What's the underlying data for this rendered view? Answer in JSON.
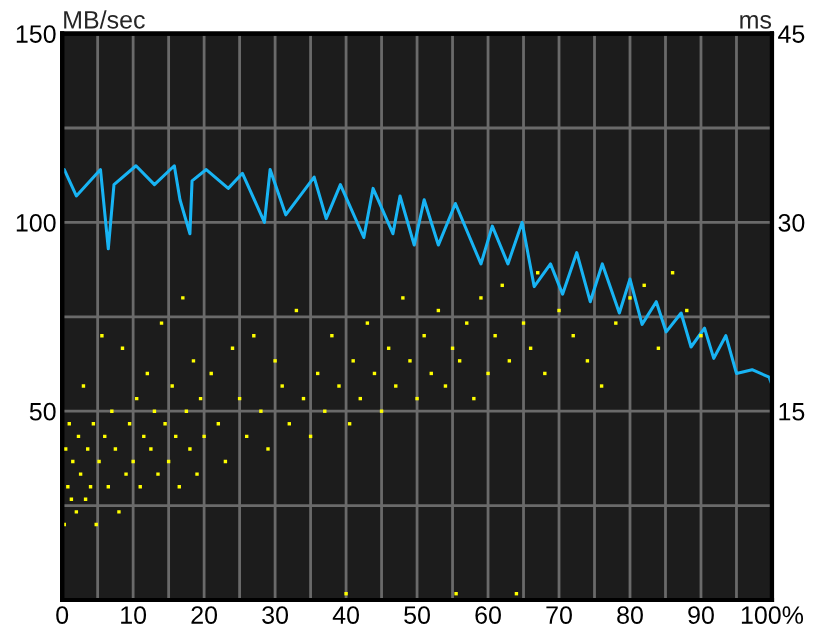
{
  "chart_data": {
    "type": "line",
    "ylabel": "MB/sec",
    "y2label": "ms",
    "xlim": [
      0,
      100
    ],
    "xticks": [
      0,
      {
        "value": 5,
        "label": null
      },
      10,
      {
        "value": 15,
        "label": null
      },
      20,
      {
        "value": 25,
        "label": null
      },
      30,
      {
        "value": 35,
        "label": null
      },
      40,
      {
        "value": 45,
        "label": null
      },
      50,
      {
        "value": 55,
        "label": null
      },
      60,
      {
        "value": 65,
        "label": null
      },
      70,
      {
        "value": 75,
        "label": null
      },
      80,
      {
        "value": 85,
        "label": null
      },
      90,
      {
        "value": 95,
        "label": null
      },
      {
        "value": 100,
        "label": "100%"
      }
    ],
    "ylim": [
      0,
      150
    ],
    "yticks": [
      {
        "value": 0,
        "label": null
      },
      {
        "value": 25,
        "label": null
      },
      50,
      {
        "value": 75,
        "label": null
      },
      100,
      {
        "value": 125,
        "label": null
      },
      150
    ],
    "y2lim": [
      0,
      45
    ],
    "y2ticks": [
      15,
      30,
      45
    ],
    "grid": true,
    "legend": false,
    "series": [
      {
        "color": "#18b4f4",
        "marker": "none",
        "line_style": "solid",
        "x": [
          0.3,
          2,
          5.4,
          6.5,
          7.3,
          10.4,
          13,
          15.8,
          16.6,
          18,
          18.3,
          20.3,
          23.4,
          25.4,
          28.5,
          29.3,
          31.5,
          35.5,
          37.2,
          39.2,
          42.5,
          43.8,
          46.6,
          47.6,
          49.6,
          51,
          53,
          55.4,
          59,
          60.6,
          62.8,
          64.8,
          66.5,
          68.8,
          70.5,
          72.5,
          74.4,
          76.1,
          78.5,
          80,
          81.7,
          83.7,
          85.1,
          87.2,
          88.6,
          90.5,
          91.8,
          93.5,
          95,
          97.2,
          99.6,
          100
        ],
        "values": [
          114,
          107,
          114,
          93,
          110,
          115,
          110,
          115,
          106,
          97,
          111,
          114,
          109,
          113,
          100,
          114,
          102,
          112,
          101,
          110,
          96,
          109,
          97,
          107,
          94,
          106,
          94,
          105,
          89,
          99,
          89,
          100,
          83,
          89,
          81,
          92,
          79,
          89,
          76,
          85,
          73,
          79,
          71,
          76,
          67,
          72,
          64,
          70,
          60,
          61,
          59,
          57
        ]
      },
      {
        "type": "scatter",
        "axis": "y2",
        "color": "#ffff00",
        "marker": "square",
        "x": [
          0.3,
          0.5,
          0.8,
          1,
          1.3,
          1.5,
          2,
          2.3,
          2.6,
          3,
          3.3,
          3.6,
          4,
          4.4,
          4.8,
          5.2,
          5.6,
          6,
          6.5,
          7,
          7.5,
          8,
          8.5,
          9,
          9.5,
          10,
          10.5,
          11,
          11.5,
          12,
          12.5,
          13,
          13.5,
          14,
          14.5,
          15,
          15.5,
          16,
          16.5,
          17,
          17.5,
          18,
          18.5,
          19,
          19.5,
          20,
          21,
          22,
          23,
          24,
          25,
          26,
          27,
          28,
          29,
          30,
          31,
          32,
          33,
          34,
          35,
          36,
          37,
          38,
          39,
          40,
          40.5,
          41,
          42,
          43,
          44,
          45,
          46,
          47,
          48,
          49,
          50,
          51,
          52,
          53,
          54,
          55,
          55.5,
          56,
          57,
          58,
          59,
          60,
          61,
          62,
          63,
          64,
          65,
          66,
          67,
          68,
          70,
          72,
          74,
          76,
          78,
          80,
          82,
          84,
          86,
          88,
          90
        ],
        "values": [
          6,
          12,
          9,
          14,
          8,
          11,
          7,
          13,
          10,
          17,
          8,
          12,
          9,
          14,
          6,
          11,
          21,
          13,
          9,
          15,
          12,
          7,
          20,
          10,
          14,
          11,
          16,
          9,
          13,
          18,
          12,
          15,
          10,
          22,
          14,
          11,
          17,
          13,
          9,
          24,
          15,
          12,
          19,
          10,
          16,
          13,
          18,
          14,
          11,
          20,
          16,
          13,
          21,
          15,
          12,
          19,
          17,
          14,
          23,
          16,
          13,
          18,
          15,
          21,
          17,
          0.5,
          14,
          19,
          16,
          22,
          18,
          15,
          20,
          17,
          24,
          19,
          16,
          21,
          18,
          23,
          17,
          20,
          0.5,
          19,
          22,
          16,
          24,
          18,
          21,
          25,
          19,
          0.5,
          22,
          20,
          26,
          18,
          23,
          21,
          19,
          17,
          22,
          24,
          25,
          20,
          26,
          23,
          21
        ]
      }
    ]
  }
}
